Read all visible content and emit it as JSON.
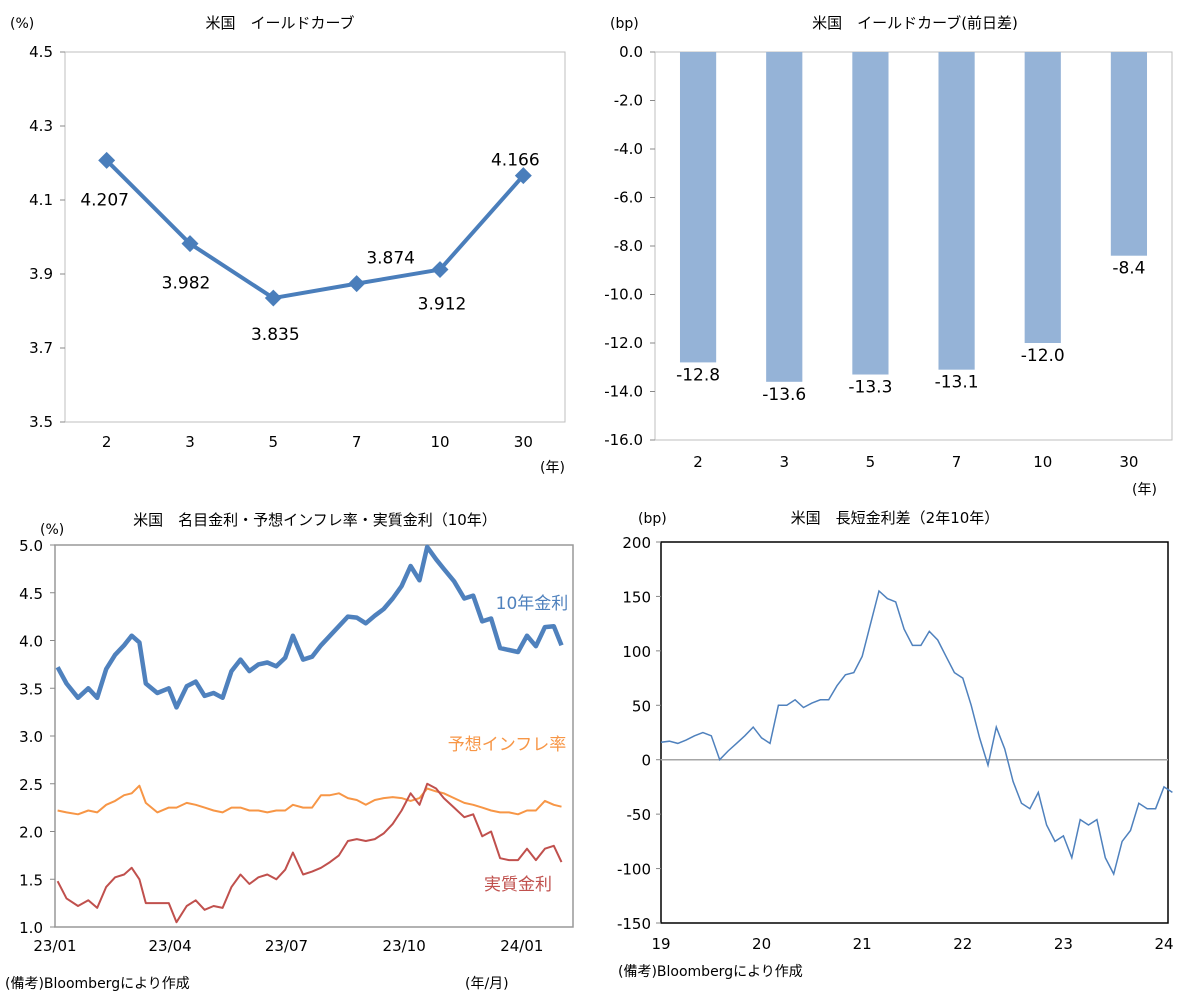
{
  "chart_data": [
    {
      "type": "line",
      "title": "米国　イールドカーブ",
      "ylabel": "(%)",
      "xlabel": "(年)",
      "categories": [
        "2",
        "3",
        "5",
        "7",
        "10",
        "30"
      ],
      "values": [
        4.207,
        3.982,
        3.835,
        3.874,
        3.912,
        4.166
      ],
      "data_labels": [
        "4.207",
        "3.982",
        "3.835",
        "3.874",
        "3.912",
        "4.166"
      ],
      "ylim": [
        3.5,
        4.5
      ],
      "yticks": [
        "3.5",
        "3.7",
        "3.9",
        "4.1",
        "4.3",
        "4.5"
      ],
      "marker": "diamond",
      "color": "#4a7ebb",
      "grid": false
    },
    {
      "type": "bar",
      "title": "米国　イールドカーブ(前日差)",
      "ylabel": "(bp)",
      "xlabel": "(年)",
      "categories": [
        "2",
        "3",
        "5",
        "7",
        "10",
        "30"
      ],
      "values": [
        -12.8,
        -13.6,
        -13.3,
        -13.1,
        -12.0,
        -8.4
      ],
      "data_labels": [
        "-12.8",
        "-13.6",
        "-13.3",
        "-13.1",
        "-12.0",
        "-8.4"
      ],
      "ylim": [
        -16,
        0
      ],
      "yticks": [
        "0.0",
        "-2.0",
        "-4.0",
        "-6.0",
        "-8.0",
        "-10.0",
        "-12.0",
        "-14.0",
        "-16.0"
      ],
      "color": "#95b3d7",
      "grid": false
    },
    {
      "type": "line",
      "title": "米国　名目金利・予想インフレ率・実質金利（10年）",
      "ylabel": "(%)",
      "xlabel": "(年/月)",
      "note": "(備考)Bloombergにより作成",
      "ylim": [
        1.0,
        5.0
      ],
      "yticks": [
        "1.0",
        "1.5",
        "2.0",
        "2.5",
        "3.0",
        "3.5",
        "4.0",
        "4.5",
        "5.0"
      ],
      "xticks": [
        {
          "date": "2023-01-01",
          "label": "23/01"
        },
        {
          "date": "2023-04-01",
          "label": "23/04"
        },
        {
          "date": "2023-07-01",
          "label": "23/07"
        },
        {
          "date": "2023-10-01",
          "label": "23/10"
        },
        {
          "date": "2024-01-01",
          "label": "24/01"
        }
      ],
      "xlim": [
        "2023-01-01",
        "2024-02-10"
      ],
      "x": [
        "2023-01-03",
        "2023-01-10",
        "2023-01-19",
        "2023-01-27",
        "2023-02-03",
        "2023-02-10",
        "2023-02-17",
        "2023-02-24",
        "2023-03-02",
        "2023-03-08",
        "2023-03-13",
        "2023-03-22",
        "2023-03-31",
        "2023-04-06",
        "2023-04-14",
        "2023-04-21",
        "2023-04-28",
        "2023-05-05",
        "2023-05-12",
        "2023-05-19",
        "2023-05-26",
        "2023-06-02",
        "2023-06-09",
        "2023-06-16",
        "2023-06-23",
        "2023-06-30",
        "2023-07-06",
        "2023-07-14",
        "2023-07-21",
        "2023-07-28",
        "2023-08-04",
        "2023-08-11",
        "2023-08-18",
        "2023-08-25",
        "2023-09-01",
        "2023-09-08",
        "2023-09-15",
        "2023-09-22",
        "2023-09-29",
        "2023-10-06",
        "2023-10-13",
        "2023-10-19",
        "2023-10-26",
        "2023-11-01",
        "2023-11-09",
        "2023-11-17",
        "2023-11-24",
        "2023-12-01",
        "2023-12-08",
        "2023-12-15",
        "2023-12-22",
        "2023-12-29",
        "2024-01-05",
        "2024-01-12",
        "2024-01-19",
        "2024-01-26",
        "2024-02-01"
      ],
      "series": [
        {
          "name": "10年金利",
          "color": "#4f81bd",
          "values": [
            3.72,
            3.55,
            3.4,
            3.5,
            3.4,
            3.7,
            3.85,
            3.95,
            4.05,
            3.98,
            3.55,
            3.45,
            3.5,
            3.3,
            3.52,
            3.57,
            3.42,
            3.45,
            3.4,
            3.68,
            3.8,
            3.68,
            3.75,
            3.77,
            3.73,
            3.82,
            4.05,
            3.8,
            3.83,
            3.95,
            4.05,
            4.15,
            4.25,
            4.24,
            4.18,
            4.26,
            4.33,
            4.44,
            4.57,
            4.78,
            4.63,
            4.98,
            4.85,
            4.75,
            4.62,
            4.44,
            4.47,
            4.2,
            4.23,
            3.92,
            3.9,
            3.88,
            4.05,
            3.94,
            4.14,
            4.15,
            3.95
          ]
        },
        {
          "name": "予想インフレ率",
          "color": "#f79646",
          "values": [
            2.22,
            2.2,
            2.18,
            2.22,
            2.2,
            2.28,
            2.32,
            2.38,
            2.4,
            2.48,
            2.3,
            2.2,
            2.25,
            2.25,
            2.3,
            2.28,
            2.25,
            2.22,
            2.2,
            2.25,
            2.25,
            2.22,
            2.22,
            2.2,
            2.22,
            2.22,
            2.28,
            2.25,
            2.25,
            2.38,
            2.38,
            2.4,
            2.35,
            2.33,
            2.28,
            2.33,
            2.35,
            2.36,
            2.35,
            2.32,
            2.35,
            2.45,
            2.42,
            2.4,
            2.35,
            2.3,
            2.28,
            2.25,
            2.22,
            2.2,
            2.2,
            2.18,
            2.22,
            2.22,
            2.32,
            2.28,
            2.26
          ]
        },
        {
          "name": "実質金利",
          "color": "#c0504d",
          "values": [
            1.48,
            1.3,
            1.22,
            1.28,
            1.2,
            1.42,
            1.52,
            1.55,
            1.62,
            1.5,
            1.25,
            1.25,
            1.25,
            1.05,
            1.22,
            1.28,
            1.18,
            1.22,
            1.2,
            1.42,
            1.55,
            1.45,
            1.52,
            1.55,
            1.5,
            1.6,
            1.78,
            1.55,
            1.58,
            1.62,
            1.68,
            1.75,
            1.9,
            1.92,
            1.9,
            1.92,
            1.98,
            2.08,
            2.22,
            2.4,
            2.28,
            2.5,
            2.45,
            2.35,
            2.25,
            2.15,
            2.18,
            1.95,
            2.0,
            1.72,
            1.7,
            1.7,
            1.82,
            1.7,
            1.82,
            1.85,
            1.68
          ]
        }
      ],
      "grid": false
    },
    {
      "type": "line",
      "title": "米国　長短金利差（2年10年）",
      "ylabel": "(bp)",
      "note": "(備考)Bloombergにより作成",
      "ylim": [
        -150,
        200
      ],
      "yticks": [
        "-150",
        "-100",
        "-50",
        "0",
        "50",
        "100",
        "150",
        "200"
      ],
      "xticks": [
        {
          "date": "2019-01",
          "label": "19"
        },
        {
          "date": "2020-01",
          "label": "20"
        },
        {
          "date": "2021-01",
          "label": "21"
        },
        {
          "date": "2022-01",
          "label": "22"
        },
        {
          "date": "2023-01",
          "label": "23"
        },
        {
          "date": "2024-01",
          "label": "24"
        }
      ],
      "xlim": [
        "2019-01",
        "2024-01"
      ],
      "x": [
        "2019-01",
        "2019-02",
        "2019-03",
        "2019-04",
        "2019-05",
        "2019-06",
        "2019-07",
        "2019-08",
        "2019-09",
        "2019-10",
        "2019-11",
        "2019-12",
        "2020-01",
        "2020-02",
        "2020-03",
        "2020-04",
        "2020-05",
        "2020-06",
        "2020-07",
        "2020-08",
        "2020-09",
        "2020-10",
        "2020-11",
        "2020-12",
        "2021-01",
        "2021-02",
        "2021-03",
        "2021-04",
        "2021-05",
        "2021-06",
        "2021-07",
        "2021-08",
        "2021-09",
        "2021-10",
        "2021-11",
        "2021-12",
        "2022-01",
        "2022-02",
        "2022-03",
        "2022-04",
        "2022-05",
        "2022-06",
        "2022-07",
        "2022-08",
        "2022-09",
        "2022-10",
        "2022-11",
        "2022-12",
        "2023-01",
        "2023-02",
        "2023-03",
        "2023-04",
        "2023-05",
        "2023-06",
        "2023-07",
        "2023-08",
        "2023-09",
        "2023-10",
        "2023-11",
        "2023-12",
        "2024-01",
        "2024-02"
      ],
      "values": [
        16,
        17,
        15,
        18,
        22,
        25,
        22,
        0,
        8,
        15,
        22,
        30,
        20,
        15,
        50,
        50,
        55,
        48,
        52,
        55,
        55,
        68,
        78,
        80,
        95,
        125,
        155,
        148,
        145,
        120,
        105,
        105,
        118,
        110,
        95,
        80,
        75,
        50,
        20,
        -5,
        30,
        10,
        -20,
        -40,
        -45,
        -30,
        -60,
        -75,
        -70,
        -90,
        -55,
        -60,
        -55,
        -90,
        -105,
        -75,
        -65,
        -40,
        -45,
        -45,
        -25,
        -30
      ],
      "color": "#4f81bd",
      "zero_line": true,
      "grid": false
    }
  ]
}
